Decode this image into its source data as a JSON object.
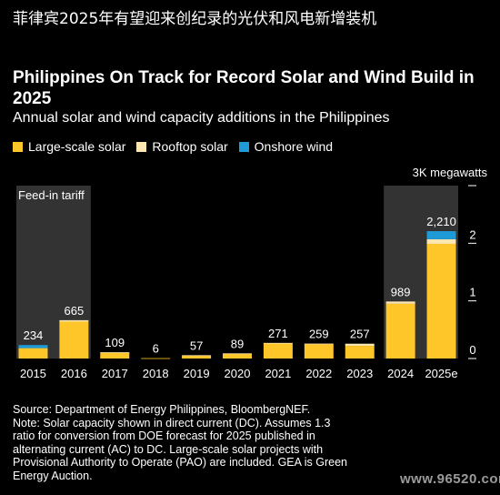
{
  "headline": "菲律宾2025年有望迎来创纪录的光伏和风电新增装机",
  "watermark": "www.96520.com",
  "chart_data": {
    "type": "bar",
    "stacked": true,
    "title": "Philippines On Track for Record Solar and Wind Build in 2025",
    "subtitle": "Annual solar and wind capacity additions in the Philippines",
    "categories": [
      "2015",
      "2016",
      "2017",
      "2018",
      "2019",
      "2020",
      "2021",
      "2022",
      "2023",
      "2024",
      "2025e"
    ],
    "series": [
      {
        "name": "Large-scale solar",
        "color": "#ffc629",
        "values": [
          180,
          640,
          100,
          6,
          50,
          80,
          262,
          250,
          220,
          950,
          1990
        ]
      },
      {
        "name": "Rooftop solar",
        "color": "#fde7b0",
        "values": [
          0,
          25,
          9,
          0,
          7,
          9,
          9,
          9,
          37,
          39,
          80
        ]
      },
      {
        "name": "Onshore wind",
        "color": "#1e9bd7",
        "values": [
          54,
          0,
          0,
          0,
          0,
          0,
          0,
          0,
          0,
          0,
          140
        ]
      }
    ],
    "totals": [
      "234",
      "665",
      "109",
      "6",
      "57",
      "89",
      "271",
      "259",
      "257",
      "989",
      "2,210"
    ],
    "shaded_periods": [
      {
        "label": "Feed-in tariff",
        "from": "2015",
        "to": "2016"
      },
      {
        "label": "",
        "from": "2024",
        "to": "2025e"
      }
    ],
    "ylim": [
      0,
      3000
    ],
    "yticks": [
      0,
      1000,
      2000,
      3000
    ],
    "ytick_labels": [
      "0",
      "1",
      "2",
      "3K megawatts"
    ],
    "grid": false
  },
  "footer": {
    "lines": [
      "Source: Department of Energy Philippines, BloombergNEF.",
      "Note: Solar capacity shown in direct current (DC). Assumes 1.3",
      "ratio for conversion from DOE forecast for 2025 published in",
      "alternating current (AC) to DC. Large-scale solar projects with",
      "Provisional Authority to Operate (PAO) are included. GEA is Green",
      "Energy Auction."
    ]
  }
}
